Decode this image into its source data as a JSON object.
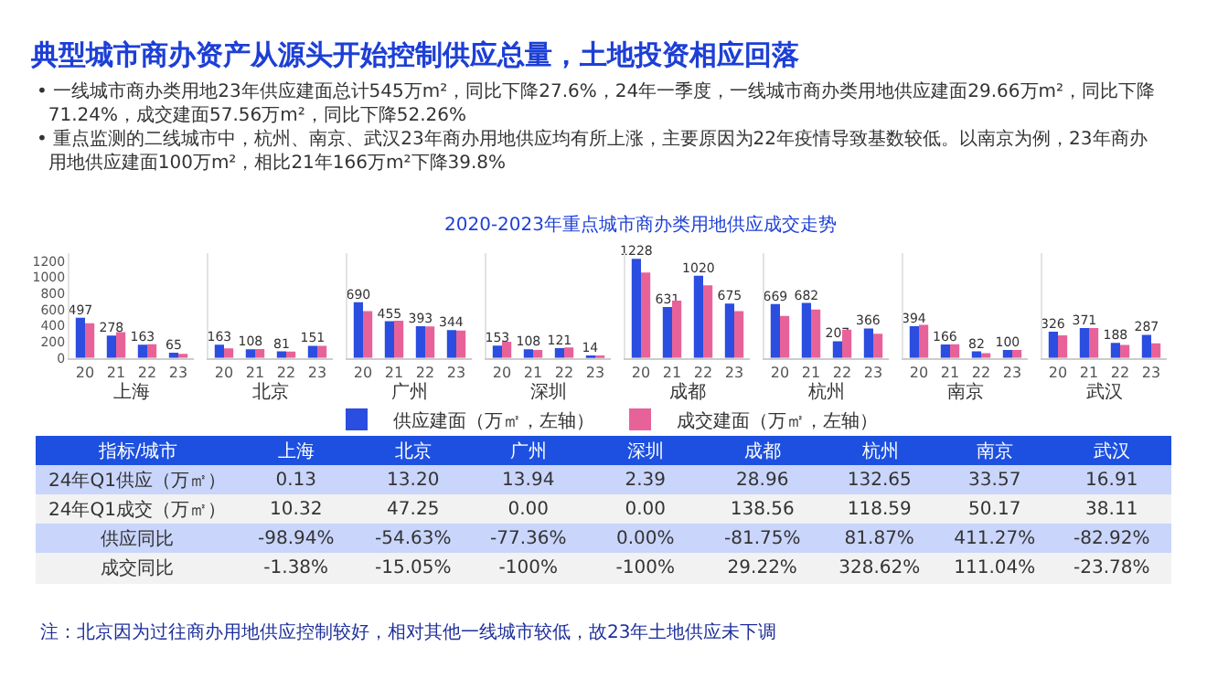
{
  "chart_data": [
    {
      "type": "other",
      "title": "典型城市商办资产从源头开始控制供应总量，土地投资相应回落",
      "subtitle": "2020-2023年重点城市商办类用地供应成交走势",
      "annotations": [
        "• 一线城市商办类用地23年供应建面总计545万m²，同比下降27.6%，24年一季度，一线城市商办类用地供应建面29.66万m²，同比下降71.24%，成交建面57.56万m²，同比下降52.26%",
        "• 重点监测的二线城市中，杭州、南京、武汉23年商办用地供应均有所上涨，主要原因为22年疫情导致基数较低。以南京为例，23年商办用地供应建面100万m²，相比21年166万m²下降39.8%"
      ]
    },
    {
      "type": "bar",
      "categories": [
        "20",
        "21",
        "22",
        "23"
      ],
      "xlabel": "上海",
      "ylim": [
        0,
        1300
      ],
      "yticks": [
        0,
        200,
        400,
        600,
        800,
        1000,
        1200
      ],
      "legend": "bottom",
      "series": [
        {
          "name": "供应建面（万㎡，左轴）",
          "color": "#2b4de0",
          "values": [
            497,
            278,
            163,
            65
          ],
          "value_labels": [
            "497",
            "278",
            "163",
            "65"
          ]
        },
        {
          "name": "成交建面（万㎡，左轴）",
          "color": "#e8629a",
          "values": [
            430,
            320,
            170,
            50
          ]
        }
      ]
    },
    {
      "type": "bar",
      "categories": [
        "20",
        "21",
        "22",
        "23"
      ],
      "xlabel": "北京",
      "ylim": [
        0,
        1300
      ],
      "yticks": [
        0,
        200,
        400,
        600,
        800,
        1000,
        1200
      ],
      "tick_labels": "x",
      "series": [
        {
          "color": "#2b4de0",
          "values": [
            163,
            108,
            81,
            151
          ],
          "value_labels": [
            "163",
            "108",
            "81",
            "151"
          ]
        },
        {
          "color": "#e8629a",
          "values": [
            120,
            110,
            80,
            150
          ]
        }
      ]
    },
    {
      "type": "bar",
      "categories": [
        "20",
        "21",
        "22",
        "23"
      ],
      "xlabel": "广州",
      "ylim": [
        0,
        1300
      ],
      "yticks": [
        0,
        200,
        400,
        600,
        800,
        1000,
        1200
      ],
      "tick_labels": "x",
      "series": [
        {
          "color": "#2b4de0",
          "values": [
            690,
            455,
            393,
            344
          ],
          "value_labels": [
            "690",
            "455",
            "393",
            "344"
          ]
        },
        {
          "color": "#e8629a",
          "values": [
            580,
            460,
            390,
            340
          ]
        }
      ]
    },
    {
      "type": "bar",
      "categories": [
        "20",
        "21",
        "22",
        "23"
      ],
      "xlabel": "深圳",
      "ylim": [
        0,
        1300
      ],
      "yticks": [
        0,
        200,
        400,
        600,
        800,
        1000,
        1200
      ],
      "tick_labels": "x",
      "series": [
        {
          "color": "#2b4de0",
          "values": [
            153,
            108,
            121,
            14
          ],
          "value_labels": [
            "153",
            "108",
            "121",
            "14"
          ]
        },
        {
          "color": "#e8629a",
          "values": [
            200,
            100,
            130,
            20
          ]
        }
      ]
    },
    {
      "type": "bar",
      "categories": [
        "20",
        "21",
        "22",
        "23"
      ],
      "xlabel": "成都",
      "ylim": [
        0,
        1300
      ],
      "yticks": [
        0,
        200,
        400,
        600,
        800,
        1000,
        1200
      ],
      "tick_labels": "x",
      "series": [
        {
          "color": "#2b4de0",
          "values": [
            1228,
            631,
            1020,
            675
          ],
          "value_labels": [
            "1228",
            "631",
            "1020",
            "675"
          ]
        },
        {
          "color": "#e8629a",
          "values": [
            1060,
            710,
            900,
            580
          ]
        }
      ]
    },
    {
      "type": "bar",
      "categories": [
        "20",
        "21",
        "22",
        "23"
      ],
      "xlabel": "杭州",
      "ylim": [
        0,
        1300
      ],
      "yticks": [
        0,
        200,
        400,
        600,
        800,
        1000,
        1200
      ],
      "tick_labels": "x",
      "series": [
        {
          "color": "#2b4de0",
          "values": [
            669,
            682,
            207,
            366
          ],
          "value_labels": [
            "669",
            "682",
            "207",
            "366"
          ]
        },
        {
          "color": "#e8629a",
          "values": [
            520,
            600,
            350,
            300
          ]
        }
      ]
    },
    {
      "type": "bar",
      "categories": [
        "20",
        "21",
        "22",
        "23"
      ],
      "xlabel": "南京",
      "ylim": [
        0,
        1300
      ],
      "yticks": [
        0,
        200,
        400,
        600,
        800,
        1000,
        1200
      ],
      "tick_labels": "x",
      "series": [
        {
          "color": "#2b4de0",
          "values": [
            394,
            166,
            82,
            100
          ],
          "value_labels": [
            "394",
            "166",
            "82",
            "100"
          ]
        },
        {
          "color": "#e8629a",
          "values": [
            410,
            170,
            60,
            100
          ]
        }
      ]
    },
    {
      "type": "bar",
      "categories": [
        "20",
        "21",
        "22",
        "23"
      ],
      "xlabel": "武汉",
      "ylim": [
        0,
        1300
      ],
      "yticks": [
        0,
        200,
        400,
        600,
        800,
        1000,
        1200
      ],
      "tick_labels": "x",
      "series": [
        {
          "color": "#2b4de0",
          "values": [
            326,
            371,
            188,
            287
          ],
          "value_labels": [
            "326",
            "371",
            "188",
            "287"
          ]
        },
        {
          "color": "#e8629a",
          "values": [
            280,
            370,
            160,
            180
          ]
        }
      ]
    },
    {
      "type": "other",
      "categories": [
        "指标/城市",
        "上海",
        "北京",
        "广州",
        "深圳",
        "成都",
        "杭州",
        "南京",
        "武汉"
      ],
      "y_categories": [
        "24年Q1供应（万㎡）",
        "24年Q1成交（万㎡）",
        "供应同比",
        "成交同比"
      ],
      "cell_labels": [
        [
          "0.13",
          "13.20",
          "13.94",
          "2.39",
          "28.96",
          "132.65",
          "33.57",
          "16.91"
        ],
        [
          "10.32",
          "47.25",
          "0.00",
          "0.00",
          "138.56",
          "118.59",
          "50.17",
          "38.11"
        ],
        [
          "-98.94%",
          "-54.63%",
          "-77.36%",
          "0.00%",
          "-81.75%",
          "81.87%",
          "411.27%",
          "-82.92%"
        ],
        [
          "-1.38%",
          "-15.05%",
          "-100%",
          "-100%",
          "29.22%",
          "328.62%",
          "111.04%",
          "-23.78%"
        ]
      ],
      "annotations": [
        "注：北京因为过往商办用地供应控制较好，相对其他一线城市较低，故23年土地供应未下调"
      ]
    }
  ]
}
